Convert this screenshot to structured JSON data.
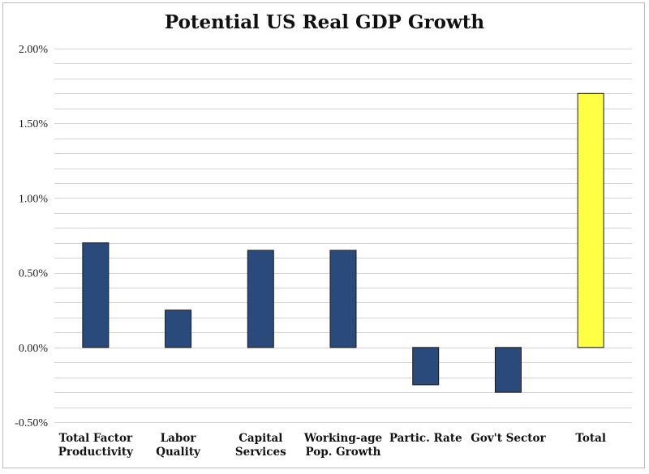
{
  "chart_data": {
    "type": "bar",
    "title": "Potential US Real GDP Growth",
    "xlabel": "",
    "ylabel": "",
    "categories": [
      [
        "Total Factor",
        "Productivity"
      ],
      [
        "Labor",
        "Quality"
      ],
      [
        "Capital",
        "Services"
      ],
      [
        "Working-age",
        "Pop. Growth"
      ],
      [
        "Partic. Rate"
      ],
      [
        "Gov't Sector"
      ],
      [
        "Total"
      ]
    ],
    "values": [
      0.7,
      0.25,
      0.65,
      0.65,
      -0.25,
      -0.3,
      1.7
    ],
    "value_unit": "%",
    "ylim": [
      -0.5,
      2.0
    ],
    "yticks": [
      {
        "value": 2.0,
        "label": "2.00%"
      },
      {
        "value": 1.5,
        "label": "1.50%"
      },
      {
        "value": 1.0,
        "label": "1.00%"
      },
      {
        "value": 0.5,
        "label": "0.50%"
      },
      {
        "value": 0.0,
        "label": "0.00%"
      },
      {
        "value": -0.5,
        "label": "-0.50%"
      }
    ],
    "minor_grid_step": 0.1,
    "grid": true,
    "legend": "none",
    "colors": {
      "component_bar": "#2b4a7c",
      "total_bar": "#ffff44",
      "bar_outline": "#1a1a1a",
      "gridline": "#d4d4d4"
    },
    "highlight_category_index": 6
  }
}
